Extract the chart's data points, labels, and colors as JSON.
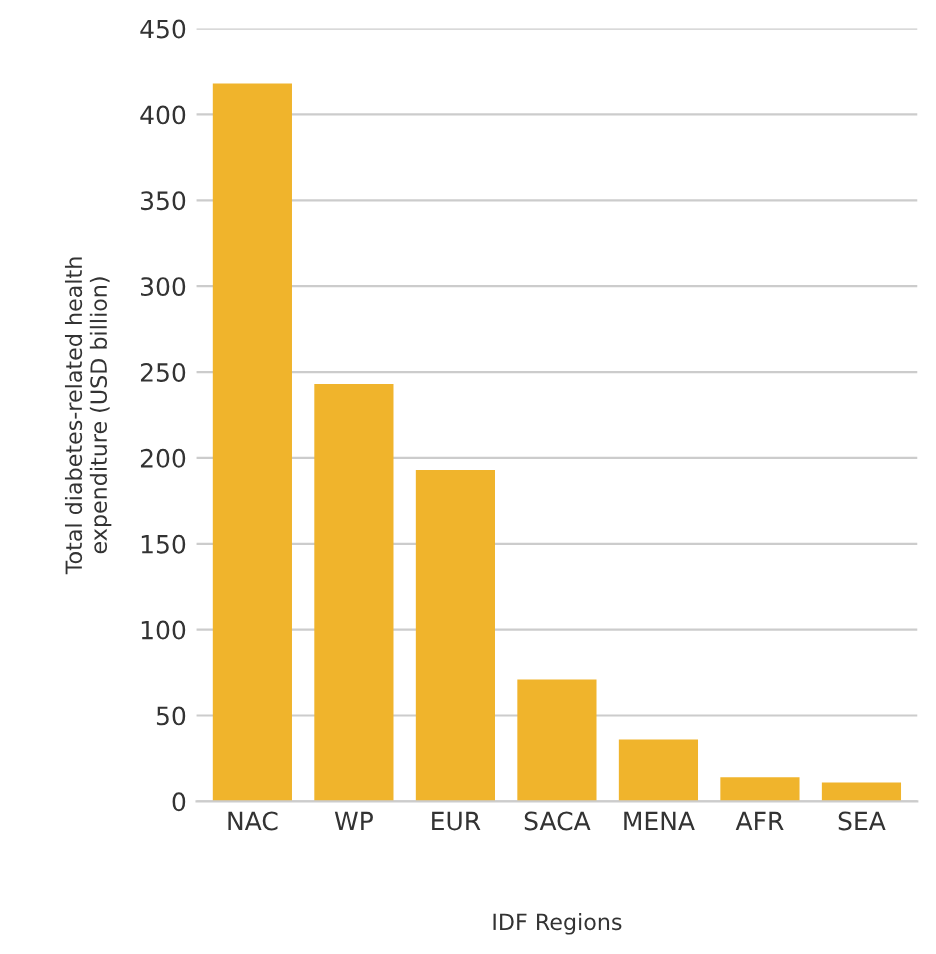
{
  "chart_data": {
    "type": "bar",
    "xlabel": "IDF Regions",
    "ylabel": "Total diabetes-related health\nexpenditure (USD billion)",
    "categories": [
      "NAC",
      "WP",
      "EUR",
      "SACA",
      "MENA",
      "AFR",
      "SEA"
    ],
    "values": [
      418,
      243,
      193,
      71,
      36,
      14,
      11
    ],
    "color": "#f0b42c",
    "ylim": [
      0,
      450
    ],
    "yticks": [
      0,
      50,
      100,
      150,
      200,
      250,
      300,
      350,
      400,
      450
    ],
    "grid": "y"
  }
}
